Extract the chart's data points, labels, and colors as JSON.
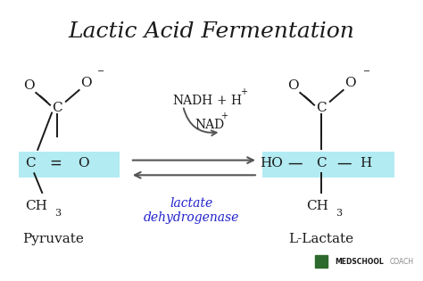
{
  "title": "Lactic Acid Fermentation",
  "title_fontsize": 18,
  "background_color": "#ffffff",
  "highlight_color": "#b2ebf2",
  "text_color": "#1a1a1a",
  "blue_color": "#2222cc",
  "arrow_color": "#555555",
  "label_left": "Pyruvate",
  "label_right": "L-Lactate",
  "enzyme_label": "lactate\ndehydrogenase"
}
